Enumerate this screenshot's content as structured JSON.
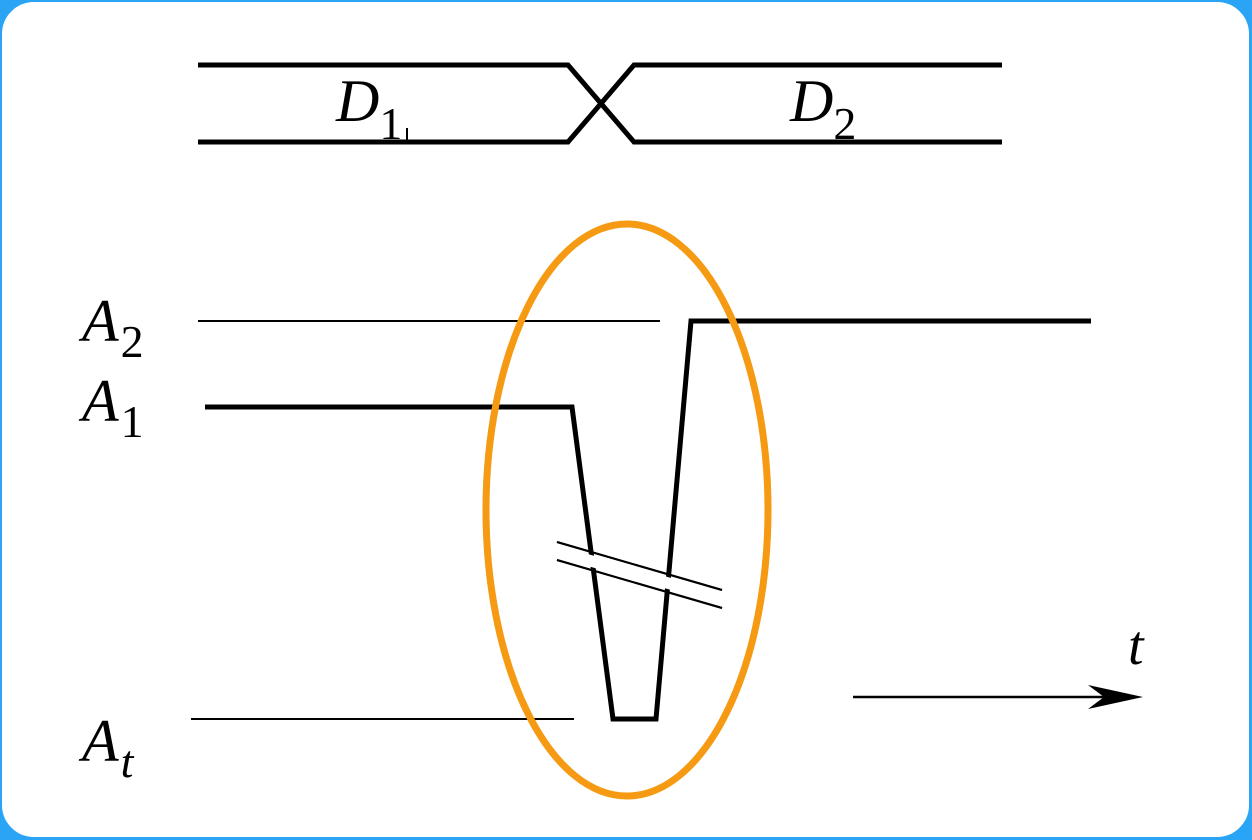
{
  "signals": {
    "d1": {
      "main": "D",
      "sub": "1"
    },
    "d2": {
      "main": "D",
      "sub": "2"
    }
  },
  "levels": {
    "a2": {
      "main": "A",
      "sub": "2"
    },
    "a1": {
      "main": "A",
      "sub": "1"
    },
    "at": {
      "main": "A",
      "sub": "t"
    }
  },
  "time_axis": {
    "label": "t"
  },
  "colors": {
    "frame": "#2aa4f4",
    "highlight": "#f59a12",
    "ink": "#000000"
  }
}
